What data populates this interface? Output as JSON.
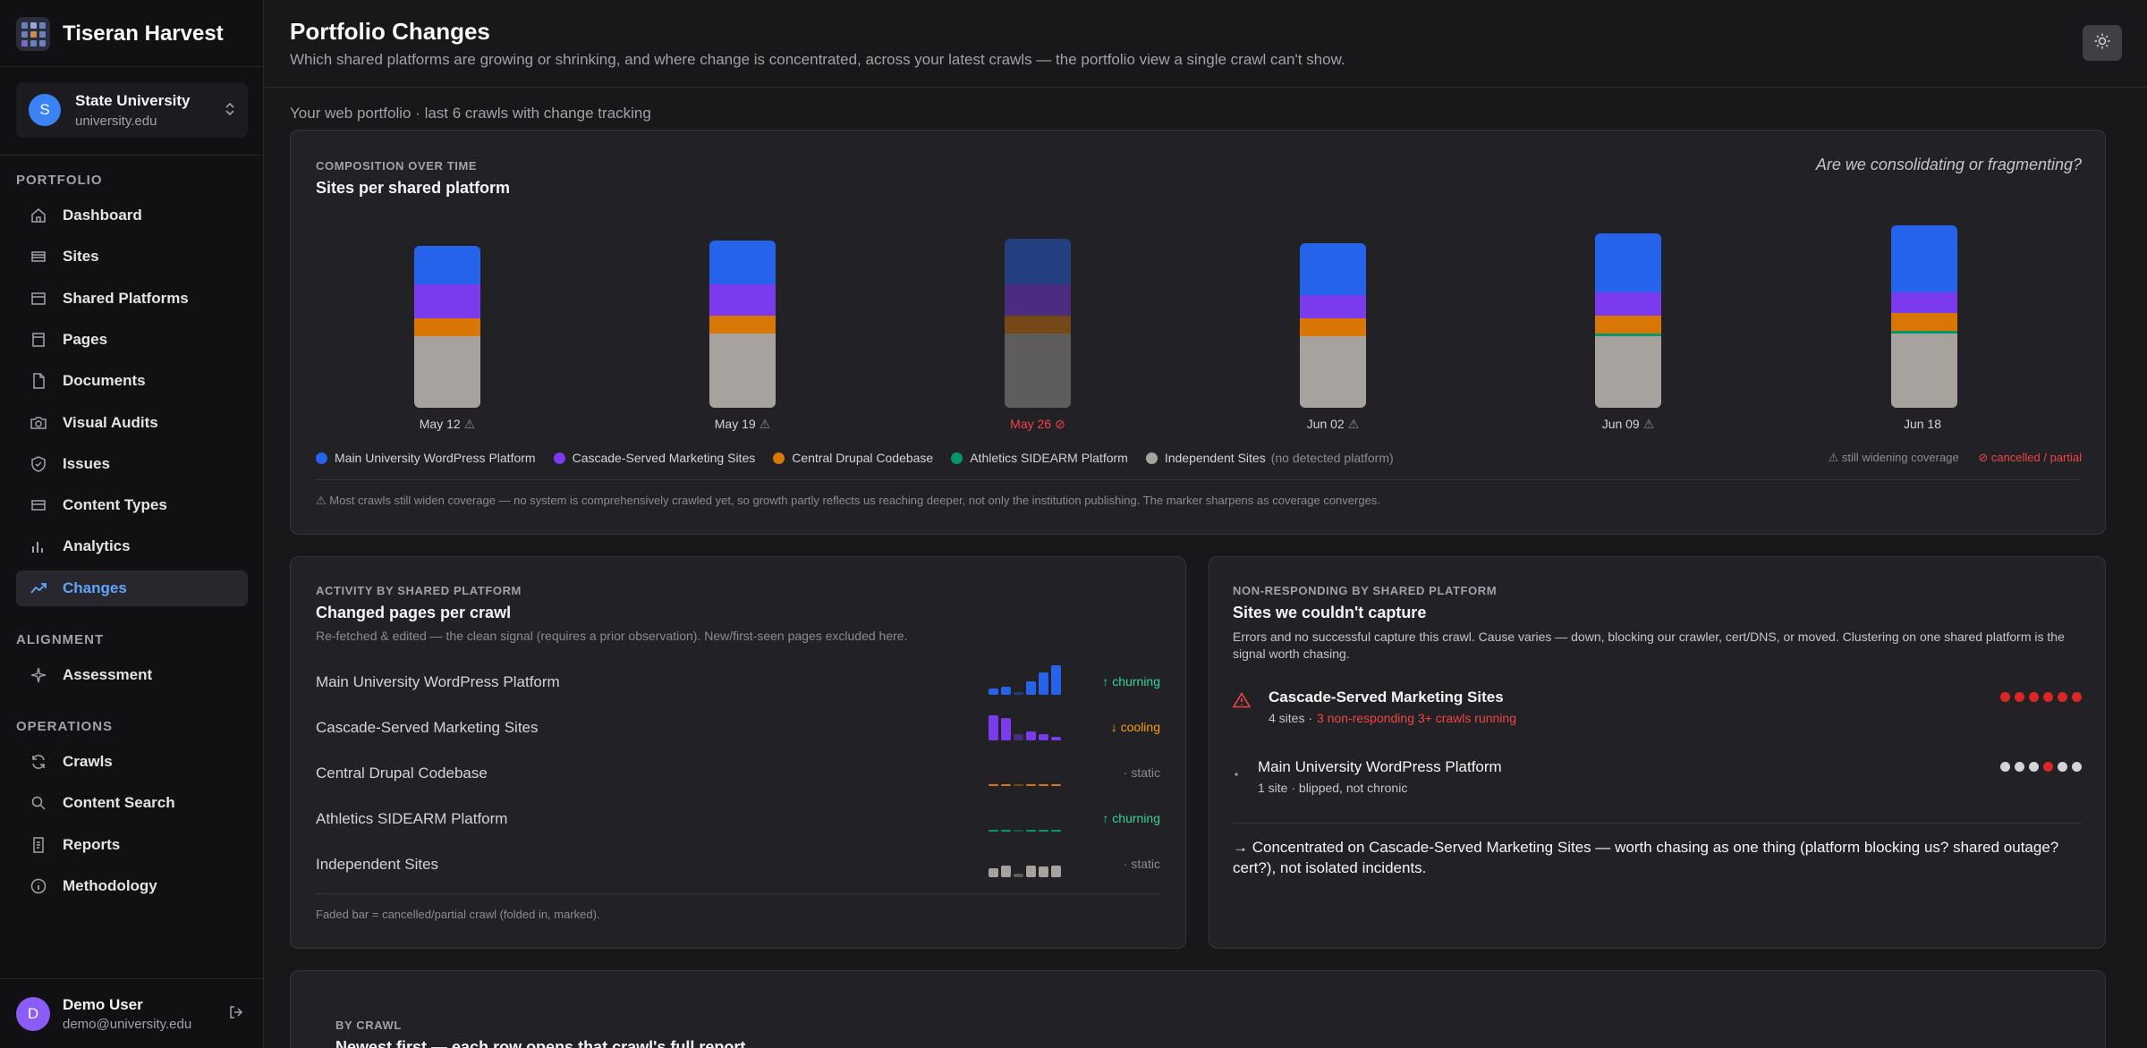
{
  "app": {
    "name": "Tiseran Harvest"
  },
  "org": {
    "avatar": "S",
    "name": "State University",
    "domain": "university.edu"
  },
  "nav": {
    "portfolio_label": "PORTFOLIO",
    "items": [
      {
        "label": "Dashboard",
        "icon": "home-icon"
      },
      {
        "label": "Sites",
        "icon": "sites-icon"
      },
      {
        "label": "Shared Platforms",
        "icon": "shared-platforms-icon"
      },
      {
        "label": "Pages",
        "icon": "pages-icon"
      },
      {
        "label": "Documents",
        "icon": "documents-icon"
      },
      {
        "label": "Visual Audits",
        "icon": "camera-icon"
      },
      {
        "label": "Issues",
        "icon": "shield-icon"
      },
      {
        "label": "Content Types",
        "icon": "content-types-icon"
      },
      {
        "label": "Analytics",
        "icon": "analytics-icon"
      },
      {
        "label": "Changes",
        "icon": "trend-icon"
      }
    ],
    "alignment_label": "ALIGNMENT",
    "alignment_items": [
      {
        "label": "Assessment",
        "icon": "sparkle-icon"
      }
    ],
    "operations_label": "OPERATIONS",
    "operations_items": [
      {
        "label": "Crawls",
        "icon": "refresh-icon"
      },
      {
        "label": "Content Search",
        "icon": "search-icon"
      },
      {
        "label": "Reports",
        "icon": "reports-icon"
      },
      {
        "label": "Methodology",
        "icon": "info-icon"
      }
    ]
  },
  "user": {
    "avatar": "D",
    "name": "Demo User",
    "email": "demo@university.edu"
  },
  "header": {
    "title": "Portfolio Changes",
    "subtitle": "Which shared platforms are growing or shrinking, and where change is concentrated, across your latest crawls — the portfolio view a single crawl can't show."
  },
  "portfolio_label": "Your web portfolio · last 6 crawls with change tracking",
  "colors": {
    "wordpress": "#2563eb",
    "cascade": "#7c3aed",
    "drupal": "#d97706",
    "sidearm": "#059669",
    "independent": "#a8a29e"
  },
  "composition": {
    "eyebrow": "COMPOSITION OVER TIME",
    "title": "Sites per shared platform",
    "question": "Are we consolidating or fragmenting?",
    "legend": [
      {
        "name": "Main University WordPress Platform",
        "color": "#2563eb"
      },
      {
        "name": "Cascade-Served Marketing Sites",
        "color": "#7c3aed"
      },
      {
        "name": "Central Drupal Codebase",
        "color": "#d97706"
      },
      {
        "name": "Athletics SIDEARM Platform",
        "color": "#059669"
      },
      {
        "name": "Independent Sites",
        "color": "#a8a29e"
      }
    ],
    "legend_note": "(no detected platform)",
    "marker_widening": "⚠ still widening coverage",
    "marker_cancelled": "⊘ cancelled / partial",
    "footnote": "⚠ Most crawls still widen coverage — no system is comprehensively crawled yet, so growth partly reflects us reaching deeper, not only the institution publishing. The marker sharpens as coverage converges."
  },
  "chart_data": {
    "type": "bar",
    "stacked": true,
    "categories": [
      "May 12",
      "May 19",
      "May 26",
      "Jun 02",
      "Jun 09",
      "Jun 18"
    ],
    "category_markers": [
      "⚠",
      "⚠",
      "⊘",
      "⚠",
      "⚠",
      ""
    ],
    "series": [
      {
        "name": "Independent Sites",
        "values": [
          28,
          29,
          29,
          28,
          28,
          29
        ]
      },
      {
        "name": "Athletics SIDEARM Platform",
        "values": [
          0,
          0,
          0,
          0,
          1,
          1
        ]
      },
      {
        "name": "Central Drupal Codebase",
        "values": [
          7,
          7,
          7,
          7,
          7,
          7
        ]
      },
      {
        "name": "Cascade-Served Marketing Sites",
        "values": [
          13,
          12,
          12,
          9,
          9,
          8
        ]
      },
      {
        "name": "Main University WordPress Platform",
        "values": [
          15,
          17,
          18,
          20,
          23,
          26
        ]
      }
    ],
    "faded_categories": [
      "May 26"
    ]
  },
  "activity": {
    "eyebrow": "ACTIVITY BY SHARED PLATFORM",
    "title": "Changed pages per crawl",
    "desc_main": "Re-fetched & edited — the clean signal (requires a prior observation).",
    "desc_extra": "New/first-seen pages excluded here.",
    "rows": [
      {
        "name": "Main University WordPress Platform",
        "trend": "↑ churning",
        "trend_color": "#34d399",
        "color": "#2563eb",
        "values": [
          5,
          6,
          2,
          10,
          17,
          22
        ]
      },
      {
        "name": "Cascade-Served Marketing Sites",
        "trend": "↓ cooling",
        "trend_color": "#f59e0b",
        "color": "#7c3aed",
        "values": [
          19,
          17,
          5,
          7,
          5,
          3
        ]
      },
      {
        "name": "Central Drupal Codebase",
        "trend": "· static",
        "trend_color": "#8a8a93",
        "color": "#d97706",
        "values": [
          1,
          1,
          1,
          1,
          1,
          1
        ]
      },
      {
        "name": "Athletics SIDEARM Platform",
        "trend": "↑ churning",
        "trend_color": "#34d399",
        "color": "#059669",
        "values": [
          0,
          0,
          0,
          0,
          1,
          1
        ]
      },
      {
        "name": "Independent Sites",
        "trend": "· static",
        "trend_color": "#8a8a93",
        "color": "#a8a29e",
        "values": [
          7,
          9,
          3,
          9,
          8,
          9
        ]
      }
    ],
    "footnote": "Faded bar = cancelled/partial crawl (folded in, marked)."
  },
  "nonresponding": {
    "eyebrow": "NON-RESPONDING BY SHARED PLATFORM",
    "title": "Sites we couldn't capture",
    "desc": "Errors and no successful capture this crawl. Cause varies — down, blocking our crawler, cert/DNS, or moved. Clustering on one shared platform is the signal worth chasing.",
    "rows": [
      {
        "name": "Cascade-Served Marketing Sites",
        "meta": "4 sites ·",
        "meta_alert": "3 non-responding 3+ crawls running",
        "icon": "warning-icon",
        "dots": [
          "#dc2626",
          "#dc2626",
          "#dc2626",
          "#dc2626",
          "#dc2626",
          "#dc2626"
        ]
      },
      {
        "name": "Main University WordPress Platform",
        "meta": "1 site · blipped, not chronic",
        "meta_alert": "",
        "icon": "bullet-icon",
        "dots": [
          "#d4d4d8",
          "#d4d4d8",
          "#d4d4d8",
          "#dc2626",
          "#d4d4d8",
          "#d4d4d8"
        ]
      }
    ],
    "conclusion": "→ Concentrated on Cascade-Served Marketing Sites — worth chasing as one thing (platform blocking us? shared outage? cert?), not isolated incidents."
  },
  "by_crawl": {
    "eyebrow": "BY CRAWL",
    "title": "Newest first — each row opens that crawl's full report"
  }
}
